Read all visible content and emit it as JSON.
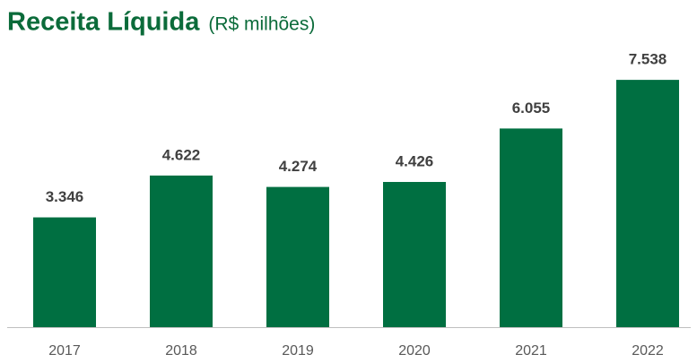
{
  "chart_data": {
    "type": "bar",
    "title": "Receita Líquida",
    "subtitle": "(R$ milhões)",
    "categories": [
      "2017",
      "2018",
      "2019",
      "2020",
      "2021",
      "2022"
    ],
    "values": [
      3346,
      4622,
      4274,
      4426,
      6055,
      7538
    ],
    "value_labels": [
      "3.346",
      "4.622",
      "4.274",
      "4.426",
      "6.055",
      "7.538"
    ],
    "color": "#006f41"
  }
}
